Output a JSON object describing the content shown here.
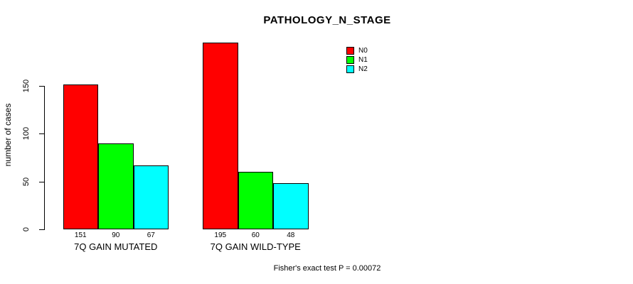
{
  "chart_data": {
    "type": "bar",
    "title": "PATHOLOGY_N_STAGE",
    "xlabel": "",
    "ylabel": "number of cases",
    "categories": [
      "7Q GAIN MUTATED",
      "7Q GAIN WILD-TYPE"
    ],
    "series": [
      {
        "name": "N0",
        "color": "#ff0000",
        "values": [
          151,
          195
        ]
      },
      {
        "name": "N1",
        "color": "#00ff00",
        "values": [
          90,
          60
        ]
      },
      {
        "name": "N2",
        "color": "#00ffff",
        "values": [
          67,
          48
        ]
      }
    ],
    "yticks": [
      0,
      50,
      100,
      150
    ],
    "ylim": [
      0,
      195
    ],
    "grid": false,
    "bar_value_labels_shown": true,
    "legend_position": "top-right",
    "legend_entries": [
      "N0",
      "N1",
      "N2"
    ],
    "annotation": "Fisher's exact test P = 0.00072"
  }
}
